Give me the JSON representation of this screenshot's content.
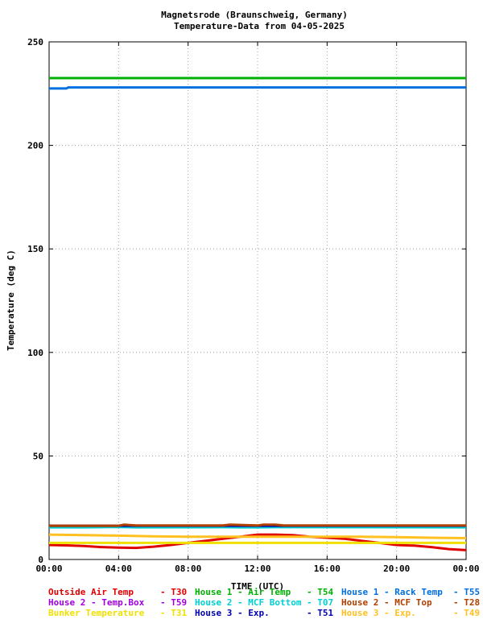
{
  "chart_data": {
    "type": "line",
    "title": "Magnetsrode (Braunschweig, Germany)",
    "subtitle": "Temperature-Data from 04-05-2025",
    "xlabel": "TIME (UTC)",
    "ylabel": "Temperature (deg C)",
    "xlim": [
      0,
      24
    ],
    "ylim": [
      0,
      250
    ],
    "x_ticks": [
      {
        "value": 0,
        "label": "00:00"
      },
      {
        "value": 4,
        "label": "04:00"
      },
      {
        "value": 8,
        "label": "08:00"
      },
      {
        "value": 12,
        "label": "12:00"
      },
      {
        "value": 16,
        "label": "16:00"
      },
      {
        "value": 20,
        "label": "20:00"
      },
      {
        "value": 24,
        "label": "00:00"
      }
    ],
    "y_ticks": [
      {
        "value": 0,
        "label": "0"
      },
      {
        "value": 50,
        "label": "50"
      },
      {
        "value": 100,
        "label": "100"
      },
      {
        "value": 150,
        "label": "150"
      },
      {
        "value": 200,
        "label": "200"
      },
      {
        "value": 250,
        "label": "250"
      }
    ],
    "grid": true,
    "legend_position": "bottom",
    "series": [
      {
        "name": "Outside Air Temp",
        "code": "T30",
        "color": "#e00000",
        "x": [
          0,
          1,
          2,
          3,
          4,
          5,
          6,
          7,
          8,
          9,
          10,
          11,
          12,
          13,
          14,
          15,
          16,
          17,
          18,
          19,
          20,
          21,
          22,
          23,
          24
        ],
        "y": [
          7,
          6.8,
          6.5,
          6,
          5.7,
          5.6,
          6.2,
          7,
          8,
          9,
          10,
          11,
          12,
          12,
          11.8,
          11,
          10.5,
          10,
          9,
          8,
          7,
          6.7,
          6,
          5,
          4.5
        ]
      },
      {
        "name": "House 2 - Temp.Box",
        "code": "T59",
        "color": "#a000e0",
        "x": [
          0,
          24
        ],
        "y": [
          16,
          16
        ]
      },
      {
        "name": "Bunker Temperature",
        "code": "T31",
        "color": "#f0e000",
        "x": [
          0,
          24
        ],
        "y": [
          8,
          8
        ]
      },
      {
        "name": "House 1 - Air  Temp",
        "code": "T54",
        "color": "#00b000",
        "x": [
          0,
          24
        ],
        "y": [
          232.5,
          232.5
        ]
      },
      {
        "name": "House 2 - MCF Bottom",
        "code": "T07",
        "color": "#00d0d0",
        "x": [
          0,
          2,
          4,
          5,
          10,
          11,
          12,
          13,
          24
        ],
        "y": [
          15.5,
          15.5,
          15.7,
          15.5,
          15.6,
          15.5,
          15.5,
          15.6,
          15.5
        ]
      },
      {
        "name": "House 3 - Exp.",
        "code": "T51",
        "color": "#0000b0",
        "x": [
          0,
          24
        ],
        "y": [
          16.3,
          16.3
        ]
      },
      {
        "name": "House 1 - Rack Temp",
        "code": "T55",
        "color": "#0070e0",
        "x": [
          0,
          1,
          1.1,
          24
        ],
        "y": [
          227.5,
          227.5,
          228,
          228
        ]
      },
      {
        "name": "House 2 - MCF Top",
        "code": "T28",
        "color": "#b04000",
        "x": [
          0,
          4,
          4.3,
          5,
          10,
          10.4,
          12,
          12.3,
          13,
          13.5,
          24
        ],
        "y": [
          16.3,
          16.3,
          16.8,
          16.4,
          16.4,
          16.8,
          16.4,
          16.8,
          16.8,
          16.4,
          16.4
        ]
      },
      {
        "name": "House 3 - Exp.",
        "code": "T49",
        "color": "#ffc020",
        "x": [
          0,
          2,
          4,
          6,
          8,
          10,
          12,
          14,
          16,
          18,
          20,
          22,
          24
        ],
        "y": [
          12,
          11.8,
          11.5,
          11.2,
          11,
          11,
          11,
          11,
          11,
          11,
          10.8,
          10.5,
          10.3
        ]
      }
    ]
  }
}
